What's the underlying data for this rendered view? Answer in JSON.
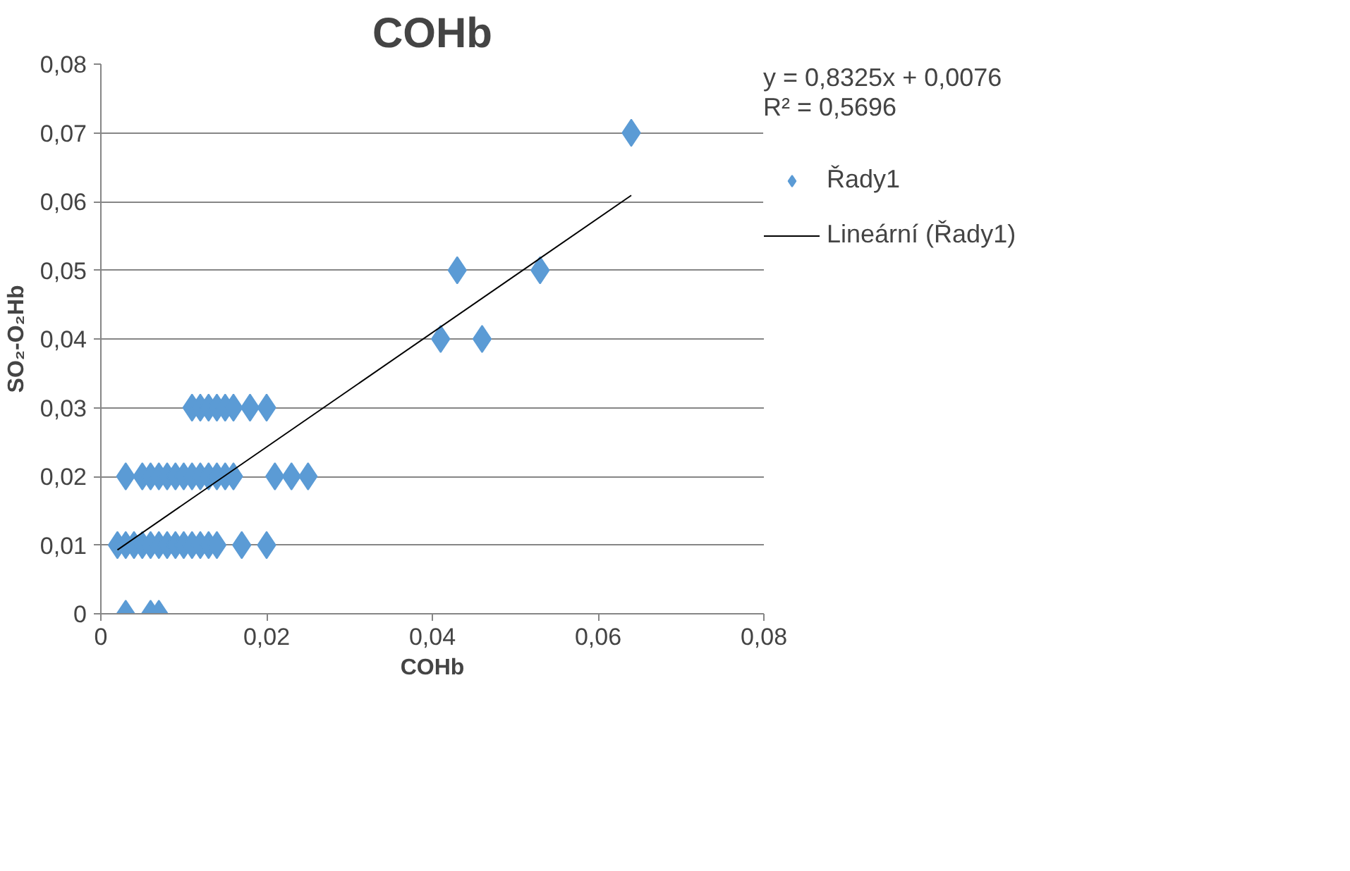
{
  "chart_data": {
    "type": "scatter",
    "title": "COHb",
    "xlabel": "COHb",
    "ylabel": "SO₂-O₂Hb",
    "xlim": [
      0,
      0.08
    ],
    "ylim": [
      0,
      0.08
    ],
    "xticks": [
      {
        "value": 0,
        "label": "0"
      },
      {
        "value": 0.02,
        "label": "0,02"
      },
      {
        "value": 0.04,
        "label": "0,04"
      },
      {
        "value": 0.06,
        "label": "0,06"
      },
      {
        "value": 0.08,
        "label": "0,08"
      }
    ],
    "yticks": [
      {
        "value": 0,
        "label": "0"
      },
      {
        "value": 0.01,
        "label": "0,01"
      },
      {
        "value": 0.02,
        "label": "0,02"
      },
      {
        "value": 0.03,
        "label": "0,03"
      },
      {
        "value": 0.04,
        "label": "0,04"
      },
      {
        "value": 0.05,
        "label": "0,05"
      },
      {
        "value": 0.06,
        "label": "0,06"
      },
      {
        "value": 0.07,
        "label": "0,07"
      },
      {
        "value": 0.08,
        "label": "0,08"
      }
    ],
    "grid": "y",
    "legend": "right",
    "annotations": [
      "y = 0,8325x + 0,0076\nR² = 0,5696"
    ],
    "series": [
      {
        "name": "Řady1",
        "type": "scatter",
        "marker": "diamond",
        "color": "#5b9bd5",
        "x": [
          0.003,
          0.006,
          0.007,
          0.002,
          0.003,
          0.004,
          0.005,
          0.006,
          0.007,
          0.008,
          0.009,
          0.01,
          0.011,
          0.012,
          0.013,
          0.014,
          0.017,
          0.02,
          0.003,
          0.005,
          0.006,
          0.007,
          0.008,
          0.009,
          0.01,
          0.011,
          0.012,
          0.013,
          0.014,
          0.015,
          0.016,
          0.021,
          0.023,
          0.025,
          0.011,
          0.012,
          0.013,
          0.014,
          0.015,
          0.016,
          0.018,
          0.02,
          0.041,
          0.046,
          0.043,
          0.053,
          0.064
        ],
        "values": [
          0,
          0,
          0,
          0.01,
          0.01,
          0.01,
          0.01,
          0.01,
          0.01,
          0.01,
          0.01,
          0.01,
          0.01,
          0.01,
          0.01,
          0.01,
          0.01,
          0.01,
          0.02,
          0.02,
          0.02,
          0.02,
          0.02,
          0.02,
          0.02,
          0.02,
          0.02,
          0.02,
          0.02,
          0.02,
          0.02,
          0.02,
          0.02,
          0.02,
          0.03,
          0.03,
          0.03,
          0.03,
          0.03,
          0.03,
          0.03,
          0.03,
          0.04,
          0.04,
          0.05,
          0.05,
          0.07
        ]
      },
      {
        "name": "Lineární (Řady1)",
        "type": "line",
        "color": "#000000",
        "x": [
          0.002,
          0.064
        ],
        "values": [
          0.0093,
          0.0609
        ]
      }
    ]
  }
}
